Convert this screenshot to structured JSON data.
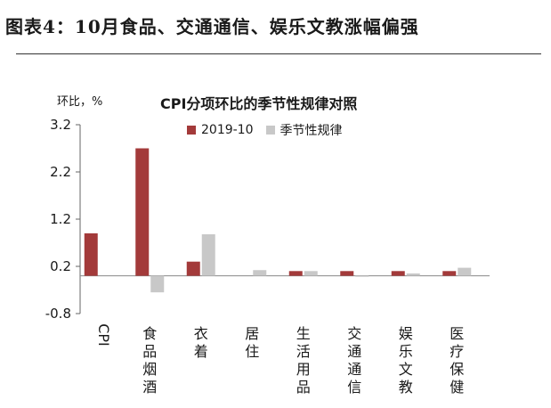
{
  "heading": "图表4：10月食品、交通通信、娱乐文教涨幅偏强",
  "chart_data": {
    "type": "bar",
    "title": "CPI分项环比的季节性规律对照",
    "ylabel": "环比，%",
    "xlabel": "",
    "ylim": [
      -0.8,
      3.2
    ],
    "yticks": [
      "3.2",
      "2.2",
      "1.2",
      "0.2",
      "-0.8"
    ],
    "categories": [
      "CPI",
      "食品烟酒",
      "衣着",
      "居住",
      "生活用品",
      "交通通信",
      "娱乐文教",
      "医疗保健"
    ],
    "series": [
      {
        "name": "2019-10",
        "color": "#a33a3a",
        "values": [
          0.9,
          2.7,
          0.3,
          0.0,
          0.1,
          0.1,
          0.1,
          0.1
        ]
      },
      {
        "name": "季节性规律",
        "color": "#c8c8c8",
        "values": [
          0.0,
          -0.35,
          0.88,
          0.12,
          0.1,
          -0.02,
          0.05,
          0.17
        ]
      }
    ],
    "legend_position": "top",
    "grid": false
  }
}
